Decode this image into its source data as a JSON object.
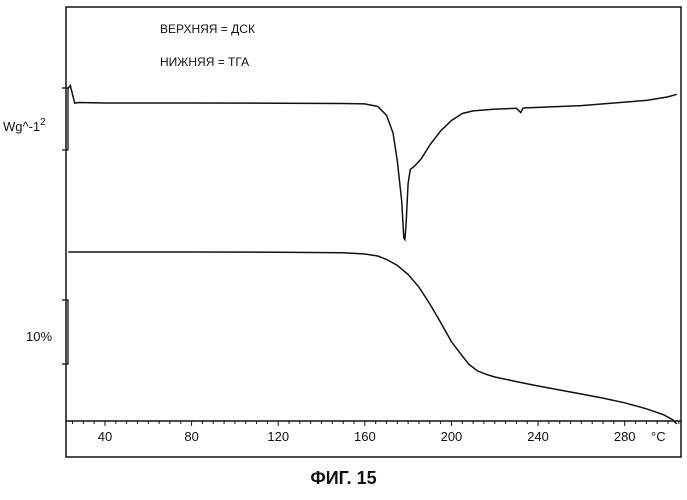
{
  "figure": {
    "caption": "ФИГ. 15"
  },
  "chart_data": {
    "type": "line",
    "legend": [
      "ВЕРХНЯЯ = ДСК",
      "НИЖНЯЯ = ТГА"
    ],
    "x_unit": "°C",
    "x_ticks": [
      40,
      80,
      120,
      160,
      200,
      240,
      280
    ],
    "xlim": [
      22,
      306
    ],
    "dsc_scale_label": "Wg^-1",
    "dsc_scale_superscript": "2",
    "tga_scale_label": "10%",
    "series": [
      {
        "name": "ВЕРХНЯЯ = ДСК",
        "x": [
          23,
          24,
          25,
          26,
          28,
          40,
          80,
          120,
          150,
          160,
          166,
          170,
          173,
          175,
          177,
          178,
          178.5,
          179,
          180,
          181,
          183,
          186,
          190,
          195,
          200,
          205,
          210,
          220,
          230,
          232,
          233,
          234,
          240,
          260,
          280,
          290,
          300,
          304
        ],
        "y": [
          0.85,
          1.0,
          0.5,
          0.0,
          0.03,
          0.0,
          0.0,
          -0.01,
          -0.03,
          -0.05,
          -0.2,
          -0.7,
          -1.7,
          -3.3,
          -5.6,
          -7.7,
          -7.8,
          -7.0,
          -4.6,
          -3.8,
          -3.6,
          -3.2,
          -2.4,
          -1.6,
          -1.0,
          -0.6,
          -0.45,
          -0.35,
          -0.3,
          -0.55,
          -0.3,
          -0.28,
          -0.25,
          -0.15,
          0.05,
          0.15,
          0.35,
          0.5
        ]
      },
      {
        "name": "НИЖНЯЯ = ТГА",
        "x": [
          23,
          40,
          80,
          120,
          150,
          160,
          166,
          170,
          175,
          180,
          185,
          190,
          195,
          200,
          205,
          208,
          212,
          216,
          220,
          230,
          240,
          250,
          260,
          270,
          280,
          290,
          298,
          302,
          304
        ],
        "y": [
          0.0,
          0.0,
          0.0,
          -0.05,
          -0.2,
          -0.6,
          -1.2,
          -2.2,
          -4.0,
          -6.7,
          -10.5,
          -15.5,
          -21.0,
          -26.8,
          -31.0,
          -33.5,
          -35.5,
          -36.5,
          -37.3,
          -38.7,
          -40.0,
          -41.2,
          -42.4,
          -43.6,
          -45.0,
          -46.8,
          -48.6,
          -50.0,
          -51.3
        ]
      }
    ]
  }
}
